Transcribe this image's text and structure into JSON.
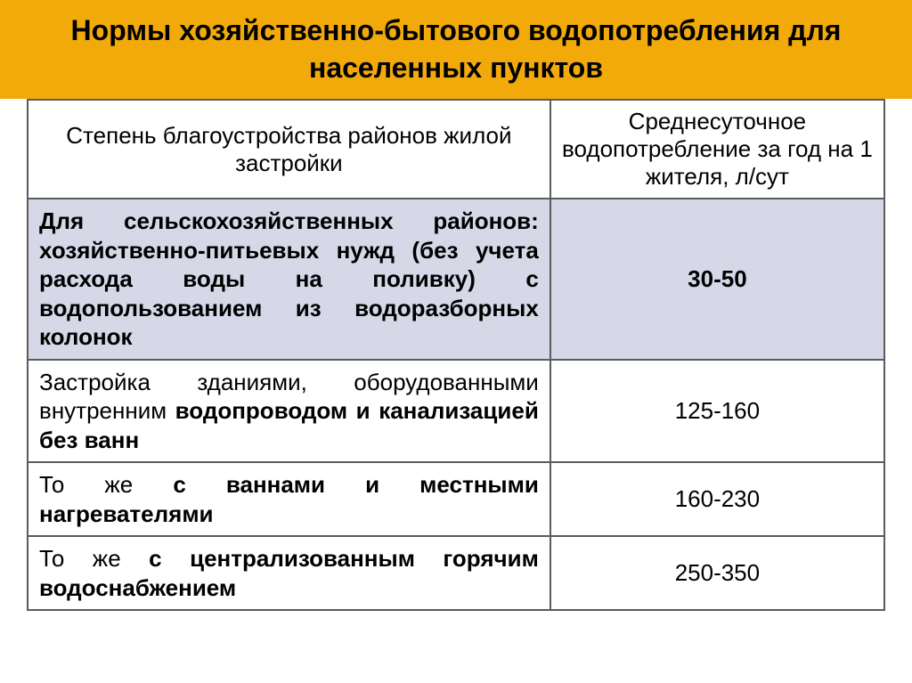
{
  "colors": {
    "title_bg": "#f2aa0b",
    "title_text": "#000000",
    "border": "#5b5b5b",
    "text": "#000000",
    "highlight_bg": "#d6d8e8",
    "page_bg": "#ffffff"
  },
  "title": "Нормы хозяйственно-бытового водопотребления для населенных пунктов",
  "table": {
    "col_widths_pct": [
      61,
      39
    ],
    "header": {
      "col1": "Степень благоустройства районов жилой застройки",
      "col2": "Среднесуточное водопотребление за год на 1 жителя, л/сут"
    },
    "rows": [
      {
        "highlight": true,
        "bold_all": true,
        "desc_segments": [
          {
            "t": "Для сельскохозяйственных районов: хозяйственно-питьевых нужд (без учета расхода воды на поливку) с водопользованием из водоразборных колонок",
            "b": true
          }
        ],
        "value": "30-50"
      },
      {
        "highlight": false,
        "bold_all": false,
        "desc_segments": [
          {
            "t": "Застройка зданиями, оборудованными внутренним ",
            "b": false
          },
          {
            "t": "водопроводом и канализацией без ванн",
            "b": true
          }
        ],
        "value": "125-160"
      },
      {
        "highlight": false,
        "bold_all": false,
        "desc_segments": [
          {
            "t": "То же ",
            "b": false
          },
          {
            "t": "с ваннами и местными нагревателями",
            "b": true
          }
        ],
        "value": "160-230"
      },
      {
        "highlight": false,
        "bold_all": false,
        "desc_segments": [
          {
            "t": "То же ",
            "b": false
          },
          {
            "t": "с централизованным горячим водоснабжением",
            "b": true
          }
        ],
        "value": "250-350"
      }
    ]
  }
}
